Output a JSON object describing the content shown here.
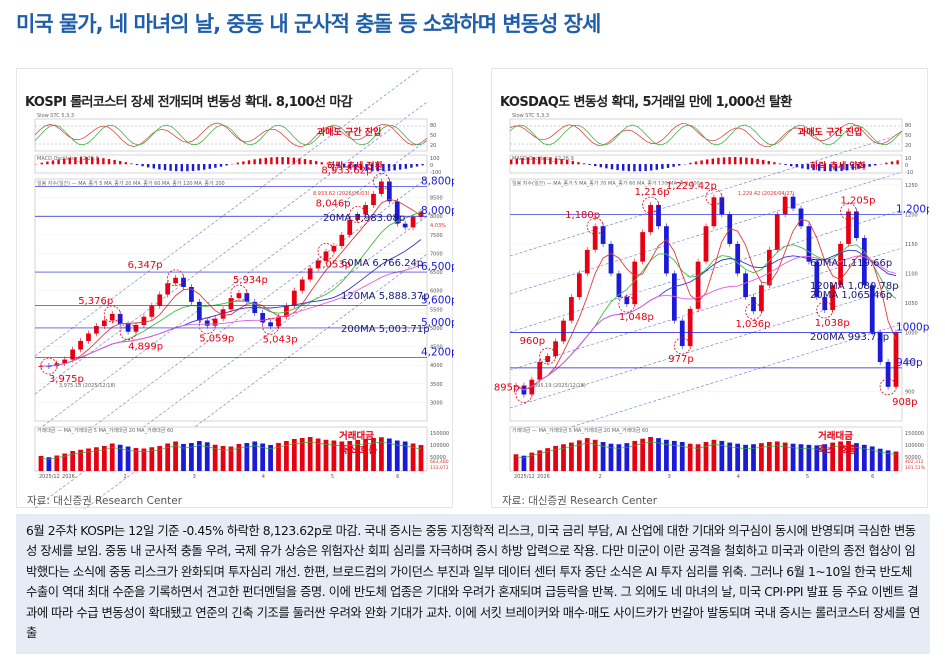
{
  "page": {
    "title": "미국 물가, 네 마녀의 날, 중동 내 군사적 충돌 등 소화하며 변동성 장세",
    "summary": "6월 2주차 KOSPI는 12일 기준 -0.45% 하락한 8,123.62p로 마감. 국내 증시는 중동 지정학적 리스크, 미국 금리 부담, AI 산업에 대한 기대와 의구심이 동시에 반영되며 극심한 변동성 장세를 보임. 중동 내 군사적 충돌 우려, 국제 유가 상승은 위험자산 회피 심리를 자극하며 증시 하방 압력으로 작용. 다만 미군이 이란 공격을 철회하고 미국과 이란의 종전 협상이 임박했다는 소식에 중동 리스크가 완화되며 투자심리 개선. 한편, 브로드컴의 가이던스 부진과 일부 데이터 센터 투자 중단 소식은 AI 투자 심리를 위축. 그러나 6월 1~10일 한국 반도체 수출이 역대 최대 수준을 기록하면서 견고한 펀더멘털을 증명. 이에 반도체 업종은 기대와 우려가 혼재되며 급등락을 반복. 그 외에도 네 마녀의 날, 미국 CPI·PPI 발표 등 주요 이벤트 결과에 따라 수급 변동성이 확대됐고 연준의 긴축 기조를 둘러싼 우려와 완화 기대가 교차. 이에 서킷 브레이커와 매수·매도 사이드카가 번갈아 발동되며 국내 증시는 롤러코스터 장세를 연출"
  },
  "colors": {
    "title": "#1f5ea8",
    "red": "#e60012",
    "blue": "#1a1ad8",
    "line20": "#e03a3a",
    "line60": "#44bb44",
    "line120": "#3333cc",
    "line200": "#e060e0",
    "channel": "#6b73d8"
  },
  "charts": [
    {
      "panel_title": "KOSPI 롤러코스터 장세 전개되며 변동성 확대. 8,100선 마감",
      "source": "자료: 대신증권 Research Center",
      "osc_label": "과매도 구간 진입",
      "macd_label": "하락 추세 전환",
      "volume_label_1": "거래대금",
      "volume_label_2": "축소 흐름",
      "ind_labels": {
        "osc": "Slow STC 5,3,3",
        "macd": "MACD Oscillator_12,26,9",
        "price": "일봉 지수(일간) — MA_종가 5  MA_종가 20  MA_종가 60  MA_종가 120  MA_종가 200",
        "vol": "거래대금 — MA_거래대금 5  MA_거래대금 20  MA_거래대금 60"
      },
      "osc_ticks": [
        "80",
        "50",
        "20"
      ],
      "macd_ticks": [
        "100",
        "0",
        "-100"
      ],
      "vol_ticks": [
        "150000",
        "100000",
        "50000"
      ],
      "x_ticks": [
        "2025/12",
        "2026",
        "2",
        "3",
        "4",
        "5",
        "6"
      ],
      "extra_texts": [
        "3,975.18 (2025/12/18)",
        "8,933.62 (2026/06/03)"
      ],
      "vol_side": [
        "683,480",
        "133,071"
      ],
      "close_label": "4.03%",
      "chart_data": {
        "type": "candlestick",
        "title": "KOSPI 롤러코스터 장세 전개되며 변동성 확대. 8,100선 마감",
        "ylim": [
          2500,
          9000
        ],
        "y_ticks": [
          9000,
          8500,
          8000,
          7500,
          7000,
          6500,
          6000,
          5500,
          5000,
          4500,
          4000,
          3500,
          3000,
          2500
        ],
        "close": [
          3980,
          3975,
          4050,
          4150,
          4420,
          4650,
          4850,
          5050,
          5200,
          5376,
          5100,
          4899,
          5080,
          5300,
          5600,
          5900,
          6200,
          6347,
          6100,
          5700,
          5200,
          5059,
          5250,
          5500,
          5800,
          5934,
          5700,
          5400,
          5150,
          5043,
          5300,
          5600,
          6000,
          6300,
          6600,
          6800,
          7053,
          7200,
          7500,
          7900,
          8046,
          8300,
          8600,
          8933,
          8400,
          7800,
          7700,
          7983,
          8124
        ],
        "volume": [
          60,
          55,
          62,
          70,
          80,
          85,
          90,
          95,
          100,
          110,
          105,
          98,
          92,
          90,
          95,
          100,
          110,
          118,
          108,
          112,
          120,
          115,
          105,
          100,
          98,
          108,
          112,
          118,
          110,
          104,
          112,
          120,
          128,
          132,
          136,
          130,
          125,
          122,
          118,
          120,
          124,
          128,
          132,
          135,
          130,
          122,
          118,
          110,
          104
        ],
        "key_points": [
          {
            "label": "3,975p",
            "value": 3975
          },
          {
            "label": "5,376p",
            "value": 5376
          },
          {
            "label": "4,899p",
            "value": 4899
          },
          {
            "label": "6,347p",
            "value": 6347
          },
          {
            "label": "5,059p",
            "value": 5059
          },
          {
            "label": "5,934p",
            "value": 5934
          },
          {
            "label": "5,043p",
            "value": 5043
          },
          {
            "label": "8,046p",
            "value": 8046
          },
          {
            "label": "7,053p",
            "value": 7053
          },
          {
            "label": "8,933.62p",
            "value": 8933.62
          }
        ],
        "ma": [
          {
            "name": "20MA",
            "value": 7983.08,
            "label": "20MA 7,983.08p"
          },
          {
            "name": "60MA",
            "value": 6766.24,
            "label": "60MA 6,766.24p"
          },
          {
            "name": "120MA",
            "value": 5888.37,
            "label": "120MA 5,888.37p"
          },
          {
            "name": "200MA",
            "value": 5003.71,
            "label": "200MA 5,003.71p"
          }
        ],
        "levels": [
          {
            "label": "8,800p",
            "value": 8800
          },
          {
            "label": "8,000p",
            "value": 8000
          },
          {
            "label": "6,500p",
            "value": 6500
          },
          {
            "label": "5,600p",
            "value": 5600
          },
          {
            "label": "5,000p",
            "value": 5000
          },
          {
            "label": "4,200p",
            "value": 4200
          }
        ]
      }
    },
    {
      "panel_title": "KOSDAQ도 변동성 확대, 5거래일 만에 1,000선 탈환",
      "source": "자료: 대신증권 Research Center",
      "osc_label": "과매도 구간 진입",
      "macd_label": "하락 추세 약화",
      "volume_label_1": "거래대금",
      "volume_label_2": "축소 흐름",
      "ind_labels": {
        "osc": "Slow STC 5,3,3",
        "macd": "MACD Oscillator_12,26,9",
        "price": "일봉 지수(일간) — MA_종가 5  MA_종가 20  MA_종가 60  MA_종가 120  MA_종가 200",
        "vol": "거래대금 — MA_거래대금 5  MA_거래대금 20  MA_거래대금 60"
      },
      "osc_ticks": [
        "80",
        "50",
        "20"
      ],
      "macd_ticks": [
        "10",
        "0",
        "-10"
      ],
      "vol_ticks": [
        "150000",
        "100000",
        "50000"
      ],
      "x_ticks": [
        "2025/12",
        "2026",
        "2",
        "3",
        "4",
        "5",
        "6"
      ],
      "extra_texts": [
        "895.19 (2025/12/18)",
        "1,229.42 (2026/04/27)"
      ],
      "vol_side": [
        "402,312",
        "101.51%"
      ],
      "close_label": "",
      "chart_data": {
        "type": "candlestick",
        "title": "KOSDAQ도 변동성 확대, 5거래일 만에 1,000선 탈환",
        "ylim": [
          850,
          1260
        ],
        "y_ticks": [
          1250,
          1200,
          1150,
          1100,
          1050,
          1000,
          950,
          900,
          850
        ],
        "close": [
          910,
          895,
          920,
          950,
          960,
          985,
          1020,
          1060,
          1100,
          1140,
          1180,
          1150,
          1100,
          1060,
          1048,
          1120,
          1170,
          1216,
          1180,
          1100,
          1020,
          977,
          1040,
          1120,
          1180,
          1229,
          1200,
          1150,
          1100,
          1060,
          1036,
          1080,
          1140,
          1200,
          1230,
          1210,
          1180,
          1120,
          1060,
          1038,
          1080,
          1150,
          1205,
          1160,
          1080,
          1000,
          950,
          908,
          1000
        ],
        "volume": [
          60,
          55,
          66,
          74,
          82,
          90,
          96,
          102,
          110,
          118,
          112,
          104,
          98,
          96,
          100,
          108,
          116,
          122,
          118,
          112,
          108,
          104,
          98,
          96,
          104,
          112,
          108,
          102,
          98,
          94,
          96,
          100,
          104,
          106,
          102,
          98,
          96,
          94,
          92,
          96,
          102,
          106,
          108,
          100,
          94,
          88,
          80,
          74,
          70
        ],
        "key_points": [
          {
            "label": "895p",
            "value": 895
          },
          {
            "label": "960p",
            "value": 960
          },
          {
            "label": "1,180p",
            "value": 1180
          },
          {
            "label": "1,048p",
            "value": 1048
          },
          {
            "label": "1,216p",
            "value": 1216
          },
          {
            "label": "977p",
            "value": 977
          },
          {
            "label": "1,229.42p",
            "value": 1229.42
          },
          {
            "label": "1,036p",
            "value": 1036
          },
          {
            "label": "1,038p",
            "value": 1038
          },
          {
            "label": "1,205p",
            "value": 1205
          },
          {
            "label": "908p",
            "value": 908
          }
        ],
        "ma": [
          {
            "name": "60MA",
            "value": 1119.66,
            "label": "60MA 1,119.66p"
          },
          {
            "name": "120MA",
            "value": 1080.78,
            "label": "120MA 1,080.78p"
          },
          {
            "name": "20MA",
            "value": 1065.46,
            "label": "20MA 1,065.46p"
          },
          {
            "name": "200MA",
            "value": 993.71,
            "label": "200MA 993.71p"
          }
        ],
        "levels": [
          {
            "label": "1,200p",
            "value": 1200
          },
          {
            "label": "1000p",
            "value": 1000
          },
          {
            "label": "940p",
            "value": 940
          }
        ]
      }
    }
  ]
}
